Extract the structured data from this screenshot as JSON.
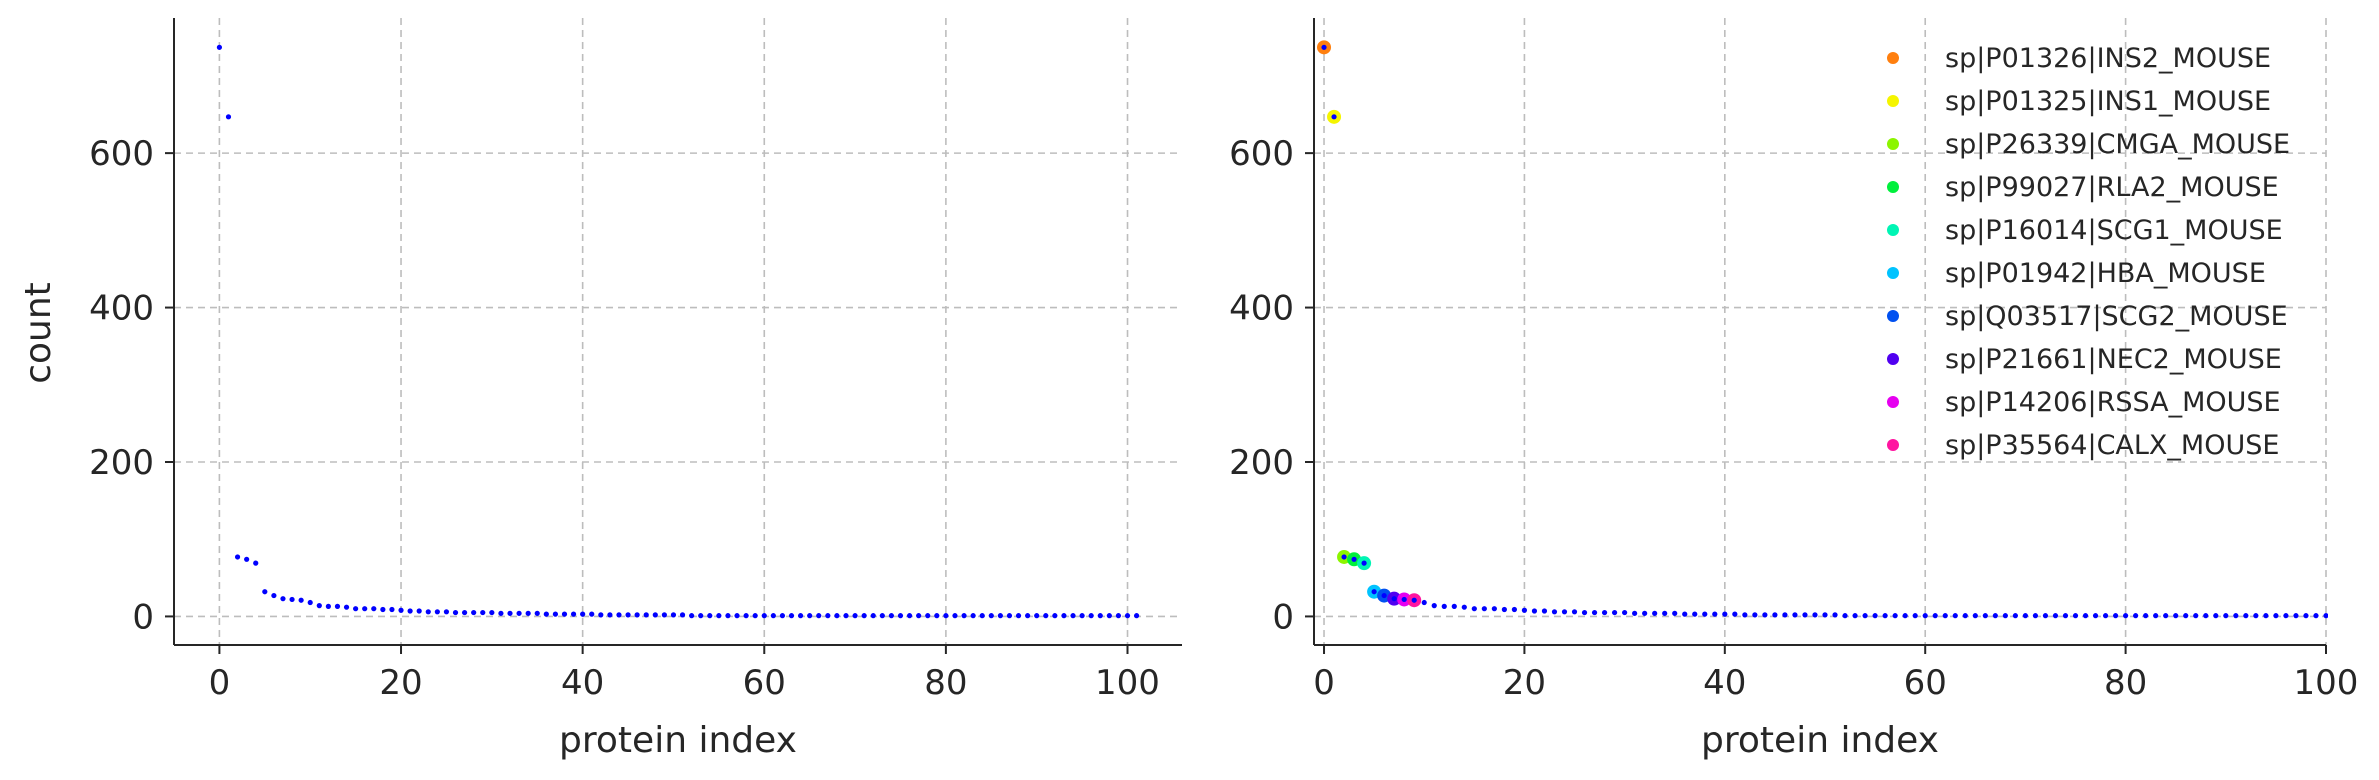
{
  "chart_data": [
    {
      "type": "scatter",
      "xlabel": "protein index",
      "ylabel": "count",
      "xlim": [
        -5,
        106
      ],
      "ylim": [
        -37,
        775
      ],
      "x_ticks": [
        0,
        20,
        40,
        60,
        80,
        100
      ],
      "y_ticks": [
        0,
        200,
        400,
        600
      ],
      "grid": true,
      "legend": "none",
      "point_color": "#0000ff",
      "x": [
        0,
        1,
        2,
        3,
        4,
        5,
        6,
        7,
        8,
        9,
        10,
        11,
        12,
        13,
        14,
        15,
        16,
        17,
        18,
        19,
        20,
        21,
        22,
        23,
        24,
        25,
        26,
        27,
        28,
        29,
        30,
        31,
        32,
        33,
        34,
        35,
        36,
        37,
        38,
        39,
        40,
        41,
        42,
        43,
        44,
        45,
        46,
        47,
        48,
        49,
        50,
        51,
        52,
        53,
        54,
        55,
        56,
        57,
        58,
        59,
        60,
        61,
        62,
        63,
        64,
        65,
        66,
        67,
        68,
        69,
        70,
        71,
        72,
        73,
        74,
        75,
        76,
        77,
        78,
        79,
        80,
        81,
        82,
        83,
        84,
        85,
        86,
        87,
        88,
        89,
        90,
        91,
        92,
        93,
        94,
        95,
        96,
        97,
        98,
        99,
        100,
        101
      ],
      "y": [
        737,
        647,
        77,
        74,
        69,
        32,
        27,
        23,
        22,
        21,
        18,
        14,
        13,
        13,
        12,
        10,
        10,
        10,
        9,
        9,
        8,
        7,
        7,
        6,
        6,
        6,
        5,
        5,
        5,
        5,
        5,
        4,
        4,
        4,
        4,
        4,
        3,
        3,
        3,
        3,
        3,
        3,
        2,
        2,
        2,
        2,
        2,
        2,
        2,
        2,
        2,
        2,
        1,
        1,
        1,
        1,
        1,
        1,
        1,
        1,
        1,
        1,
        1,
        1,
        1,
        1,
        1,
        1,
        1,
        1,
        1,
        1,
        1,
        1,
        1,
        1,
        1,
        1,
        1,
        1,
        1,
        1,
        1,
        1,
        1,
        1,
        1,
        1,
        1,
        1,
        1,
        1,
        1,
        1,
        1,
        1,
        1,
        1,
        1,
        1,
        1,
        1
      ]
    },
    {
      "type": "scatter",
      "xlabel": "protein index",
      "ylabel": "",
      "xlim": [
        -1,
        100
      ],
      "ylim": [
        -37,
        775
      ],
      "x_ticks": [
        0,
        20,
        40,
        60,
        80,
        100
      ],
      "y_ticks": [
        0,
        200,
        400,
        600
      ],
      "grid": true,
      "legend": "top-right",
      "point_color": "#0000ff",
      "x": [
        0,
        1,
        2,
        3,
        4,
        5,
        6,
        7,
        8,
        9,
        10,
        11,
        12,
        13,
        14,
        15,
        16,
        17,
        18,
        19,
        20,
        21,
        22,
        23,
        24,
        25,
        26,
        27,
        28,
        29,
        30,
        31,
        32,
        33,
        34,
        35,
        36,
        37,
        38,
        39,
        40,
        41,
        42,
        43,
        44,
        45,
        46,
        47,
        48,
        49,
        50,
        51,
        52,
        53,
        54,
        55,
        56,
        57,
        58,
        59,
        60,
        61,
        62,
        63,
        64,
        65,
        66,
        67,
        68,
        69,
        70,
        71,
        72,
        73,
        74,
        75,
        76,
        77,
        78,
        79,
        80,
        81,
        82,
        83,
        84,
        85,
        86,
        87,
        88,
        89,
        90,
        91,
        92,
        93,
        94,
        95,
        96,
        97,
        98,
        99,
        100,
        101
      ],
      "y": [
        737,
        647,
        77,
        74,
        69,
        32,
        27,
        23,
        22,
        21,
        18,
        14,
        13,
        13,
        12,
        10,
        10,
        10,
        9,
        9,
        8,
        7,
        7,
        6,
        6,
        6,
        5,
        5,
        5,
        5,
        5,
        4,
        4,
        4,
        4,
        4,
        3,
        3,
        3,
        3,
        3,
        3,
        2,
        2,
        2,
        2,
        2,
        2,
        2,
        2,
        2,
        2,
        1,
        1,
        1,
        1,
        1,
        1,
        1,
        1,
        1,
        1,
        1,
        1,
        1,
        1,
        1,
        1,
        1,
        1,
        1,
        1,
        1,
        1,
        1,
        1,
        1,
        1,
        1,
        1,
        1,
        1,
        1,
        1,
        1,
        1,
        1,
        1,
        1,
        1,
        1,
        1,
        1,
        1,
        1,
        1,
        1,
        1,
        1,
        1,
        1,
        1
      ],
      "highlighted": [
        {
          "name": "sp|P01326|INS2_MOUSE",
          "x": 0,
          "y": 737,
          "color": "#ff7f0e"
        },
        {
          "name": "sp|P01325|INS1_MOUSE",
          "x": 1,
          "y": 647,
          "color": "#f5f500"
        },
        {
          "name": "sp|P26339|CMGA_MOUSE",
          "x": 2,
          "y": 77,
          "color": "#8cf500"
        },
        {
          "name": "sp|P99027|RLA2_MOUSE",
          "x": 3,
          "y": 74,
          "color": "#00f03c"
        },
        {
          "name": "sp|P16014|SCG1_MOUSE",
          "x": 4,
          "y": 69,
          "color": "#00f5b4"
        },
        {
          "name": "sp|P01942|HBA_MOUSE",
          "x": 5,
          "y": 32,
          "color": "#00c3ff"
        },
        {
          "name": "sp|Q03517|SCG2_MOUSE",
          "x": 6,
          "y": 27,
          "color": "#0050f0"
        },
        {
          "name": "sp|P21661|NEC2_MOUSE",
          "x": 7,
          "y": 23,
          "color": "#5000f0"
        },
        {
          "name": "sp|P14206|RSSA_MOUSE",
          "x": 8,
          "y": 22,
          "color": "#e600f0"
        },
        {
          "name": "sp|P35564|CALX_MOUSE",
          "x": 9,
          "y": 21,
          "color": "#ff14a0"
        }
      ]
    }
  ]
}
